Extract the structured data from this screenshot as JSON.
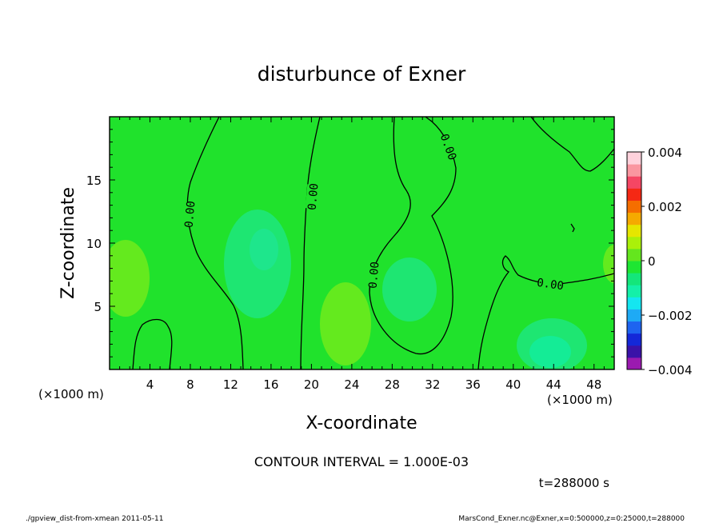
{
  "chart_data": {
    "type": "heatmap",
    "title": "disturbunce of Exner",
    "xlabel": "X-coordinate",
    "ylabel": "Z-coordinate",
    "x_unit_label": "(×1000 m)",
    "y_unit_label": "(×1000 m)",
    "xlim": [
      0,
      50
    ],
    "ylim": [
      0,
      20
    ],
    "x_ticks": [
      4,
      8,
      12,
      16,
      20,
      24,
      28,
      32,
      36,
      40,
      44,
      48
    ],
    "y_ticks": [
      5,
      10,
      15
    ],
    "x_tick_labels": [
      "4",
      "8",
      "12",
      "16",
      "20",
      "24",
      "28",
      "32",
      "36",
      "40",
      "44",
      "48"
    ],
    "y_tick_labels": [
      "5",
      "10",
      "15"
    ],
    "contour_interval_text": "CONTOUR INTERVAL = 1.000E-03",
    "time_text": "t=288000 s",
    "contour_labels": [
      "0.00",
      "0.00",
      "0.00",
      "0.00",
      "0.00"
    ],
    "colorbar": {
      "min": -0.004,
      "max": 0.004,
      "tick_labels": [
        "0.004",
        "0.002",
        "0",
        "−0.002",
        "−0.004"
      ],
      "colors": [
        "#9b1ab0",
        "#3a12a8",
        "#1428d8",
        "#1e64f0",
        "#1eaaf5",
        "#14e6f0",
        "#14f0a8",
        "#14e67a",
        "#1ee632",
        "#64e61e",
        "#aaf00a",
        "#e6e600",
        "#f5aa00",
        "#f56e00",
        "#f52814",
        "#f54664",
        "#fa96a0",
        "#ffd2dc"
      ]
    },
    "field_colors": {
      "background": "#20e22c",
      "weak_negative": "#1ee672",
      "weaker_negative": "#14ec96",
      "weak_positive": "#64ea1e"
    }
  },
  "footer": {
    "left": "./gpview_dist-from-xmean  2011-05-11",
    "right": "MarsCond_Exner.nc@Exner,x=0:500000,z=0:25000,t=288000"
  }
}
